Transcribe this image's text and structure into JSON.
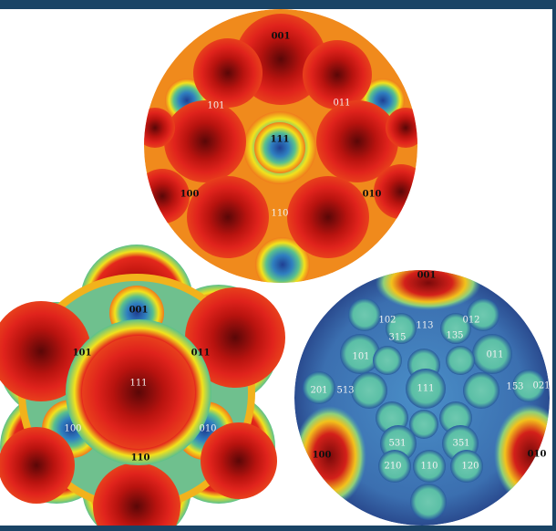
{
  "colors": {
    "frame": "#1a4466",
    "background": "#ffffff",
    "scale_high": "#6b0a0a",
    "scale_red": "#e0231c",
    "scale_yellow": "#f2e21c",
    "scale_green": "#59c08e",
    "scale_blue": "#1f3f93"
  },
  "spheres": {
    "top": {
      "labels": {
        "l001": "001",
        "l101": "101",
        "l011": "011",
        "l111": "111",
        "l100": "100",
        "l010": "010",
        "l110": "110"
      }
    },
    "bottom_left": {
      "labels": {
        "l001": "001",
        "l101": "101",
        "l011": "011",
        "l111": "111",
        "l100": "100",
        "l010": "010",
        "l110": "110"
      }
    },
    "bottom_right": {
      "labels": {
        "l001": "001",
        "l102": "102",
        "l113": "113",
        "l012": "012",
        "l315": "315",
        "l135": "135",
        "l101": "101",
        "l011": "011",
        "l201": "201",
        "l513": "513",
        "l111": "111",
        "l153": "153",
        "l021": "021",
        "l531": "531",
        "l351": "351",
        "l100": "100",
        "l210": "210",
        "l110": "110",
        "l120": "120",
        "l010": "010"
      }
    }
  }
}
